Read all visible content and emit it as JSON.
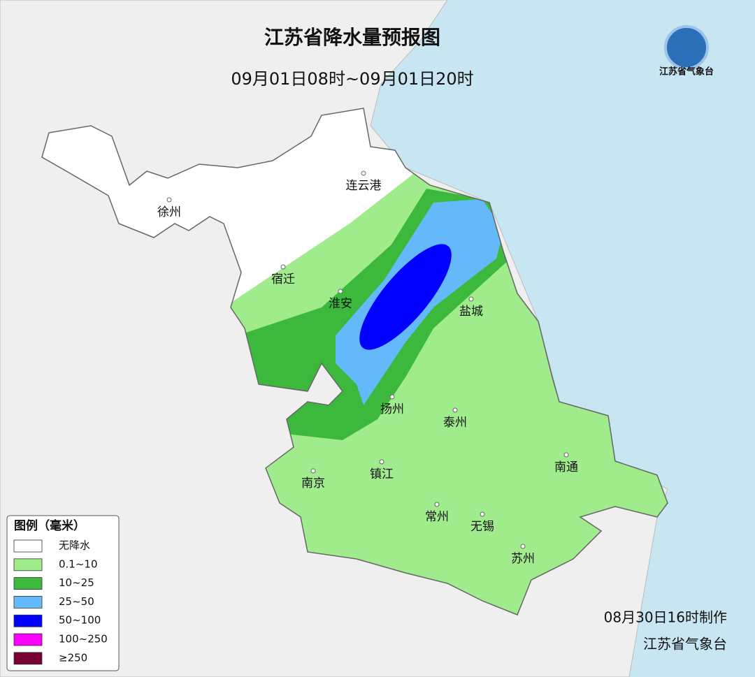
{
  "header": {
    "title": "江苏省降水量预报图",
    "subtitle": "09月01日08时~09月01日20时"
  },
  "logo": {
    "name": "江苏省气象台"
  },
  "cities": [
    "连云港",
    "徐州",
    "宿迁",
    "淮安",
    "盐城",
    "扬州",
    "泰州",
    "南通",
    "南京",
    "镇江",
    "常州",
    "无锡",
    "苏州"
  ],
  "legend": {
    "title": "图例（毫米）",
    "items": [
      {
        "label": "无降水",
        "color": "#ffffff"
      },
      {
        "label": "0.1~10",
        "color": "#a0ec8c"
      },
      {
        "label": "10~25",
        "color": "#3cb93c"
      },
      {
        "label": "25~50",
        "color": "#64b9fa"
      },
      {
        "label": "50~100",
        "color": "#0000fe"
      },
      {
        "label": "100~250",
        "color": "#fa00fa"
      },
      {
        "label": "≥250",
        "color": "#780032"
      }
    ]
  },
  "footer": {
    "made": "08月30日16时制作",
    "issuer": "江苏省气象台"
  }
}
